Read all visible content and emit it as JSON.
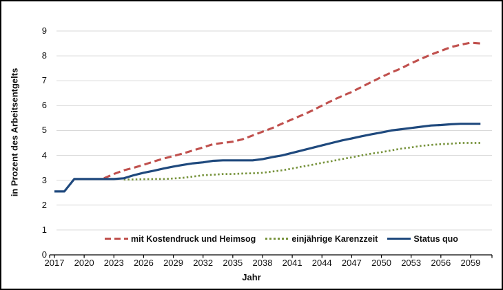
{
  "chart_data": {
    "type": "line",
    "title": "",
    "xlabel": "Jahr",
    "ylabel": "in Prozent des Arbeitsentgelts",
    "ylim": [
      0,
      9
    ],
    "xlim": [
      2017,
      2060
    ],
    "grid": true,
    "gridline_color": "#D9D9D9",
    "axis_color": "#000000",
    "legend_position": "bottom-inside",
    "y_ticks": [
      0,
      1,
      2,
      3,
      4,
      5,
      6,
      7,
      8,
      9
    ],
    "x_ticks": [
      2017,
      2020,
      2023,
      2026,
      2029,
      2032,
      2035,
      2038,
      2041,
      2044,
      2047,
      2050,
      2053,
      2056,
      2059
    ],
    "series": [
      {
        "name": "mit Kostendruck und Heimsog",
        "color": "#C0504D",
        "style": "dashed",
        "start_year": 2022,
        "values": [
          3.08,
          3.25,
          3.4,
          3.5,
          3.62,
          3.75,
          3.87,
          3.97,
          4.08,
          4.2,
          4.32,
          4.45,
          4.5,
          4.55,
          4.65,
          4.8,
          4.95,
          5.1,
          5.28,
          5.45,
          5.62,
          5.8,
          6.0,
          6.2,
          6.38,
          6.55,
          6.75,
          6.95,
          7.15,
          7.33,
          7.5,
          7.7,
          7.88,
          8.05,
          8.2,
          8.35,
          8.45,
          8.53,
          8.5
        ]
      },
      {
        "name": "einjährige Karenzzeit",
        "color": "#77933C",
        "style": "dotted",
        "start_year": 2024,
        "values": [
          3.03,
          3.03,
          3.04,
          3.05,
          3.05,
          3.07,
          3.1,
          3.15,
          3.2,
          3.22,
          3.25,
          3.25,
          3.27,
          3.28,
          3.3,
          3.35,
          3.4,
          3.47,
          3.55,
          3.62,
          3.7,
          3.77,
          3.85,
          3.92,
          4.0,
          4.07,
          4.13,
          4.2,
          4.27,
          4.32,
          4.38,
          4.42,
          4.45,
          4.47,
          4.5,
          4.5,
          4.5
        ]
      },
      {
        "name": "Status quo",
        "color": "#1F497D",
        "style": "solid",
        "start_year": 2017,
        "values": [
          2.55,
          2.55,
          3.05,
          3.05,
          3.05,
          3.05,
          3.05,
          3.08,
          3.2,
          3.3,
          3.38,
          3.47,
          3.55,
          3.62,
          3.68,
          3.72,
          3.78,
          3.8,
          3.8,
          3.8,
          3.8,
          3.85,
          3.93,
          4.0,
          4.1,
          4.2,
          4.3,
          4.4,
          4.5,
          4.6,
          4.68,
          4.77,
          4.85,
          4.92,
          5.0,
          5.05,
          5.1,
          5.15,
          5.2,
          5.22,
          5.25,
          5.27,
          5.27,
          5.27
        ]
      }
    ]
  }
}
